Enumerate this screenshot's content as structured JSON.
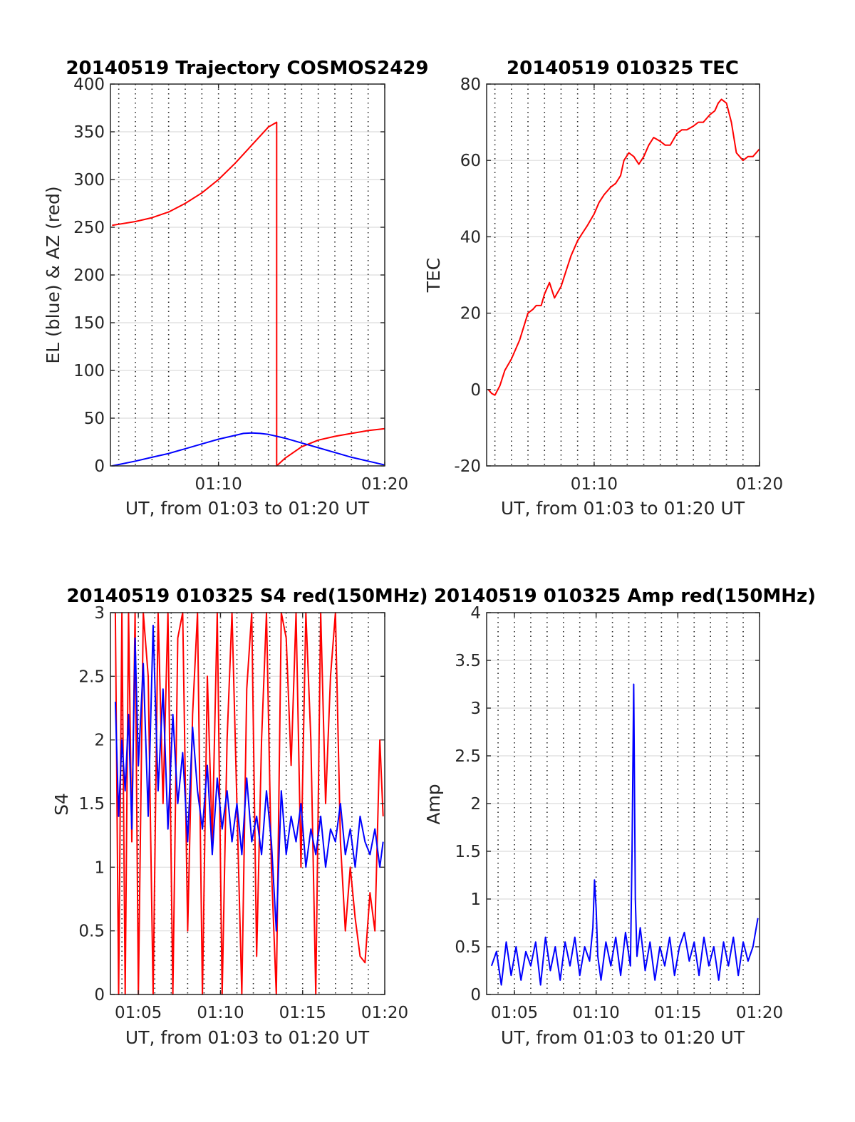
{
  "chart_data": [
    {
      "type": "line",
      "title": "20140519 Trajectory COSMOS2429",
      "xlabel": "UT, from 01:03 to 01:20 UT",
      "ylabel": "EL (blue) & AZ (red)",
      "xlim": [
        3.5,
        20
      ],
      "ylim": [
        0,
        400
      ],
      "xticks": [
        10,
        20
      ],
      "xtick_labels": [
        "01:10",
        "01:20"
      ],
      "yticks": [
        0,
        50,
        100,
        150,
        200,
        250,
        300,
        350,
        400
      ],
      "ytick_labels": [
        "0",
        "50",
        "100",
        "150",
        "200",
        "250",
        "300",
        "350",
        "400"
      ],
      "grid": true,
      "series": [
        {
          "color": "#ff0000",
          "x": [
            3.6,
            5,
            6,
            7,
            8,
            9,
            10,
            11,
            12,
            13,
            13.5,
            13.5,
            14,
            15,
            16,
            17,
            18,
            19,
            20
          ],
          "y": [
            252,
            256,
            260,
            266,
            275,
            286,
            300,
            317,
            336,
            355,
            360,
            0,
            8,
            20,
            27,
            31,
            34,
            37,
            39
          ]
        },
        {
          "color": "#0000ff",
          "x": [
            3.6,
            5,
            6,
            7,
            8,
            9,
            10,
            11,
            11.5,
            12,
            12.5,
            13,
            14,
            15,
            16,
            17,
            18,
            19,
            20
          ],
          "y": [
            0,
            5,
            9,
            13,
            18,
            23,
            28,
            32,
            34,
            34.5,
            34,
            33,
            29,
            24,
            19,
            14,
            9,
            5,
            1
          ]
        }
      ]
    },
    {
      "type": "line",
      "title": "20140519 010325 TEC",
      "xlabel": "UT, from 01:03 to 01:20 UT",
      "ylabel": "TEC",
      "xlim": [
        3.5,
        20
      ],
      "ylim": [
        -20,
        80
      ],
      "xticks": [
        10,
        20
      ],
      "xtick_labels": [
        "01:10",
        "01:20"
      ],
      "yticks": [
        -20,
        0,
        20,
        40,
        60,
        80
      ],
      "ytick_labels": [
        "-20",
        "0",
        "20",
        "40",
        "60",
        "80"
      ],
      "grid": true,
      "series": [
        {
          "color": "#ff0000",
          "x": [
            3.6,
            3.8,
            4.0,
            4.3,
            4.6,
            5.0,
            5.5,
            6.0,
            6.3,
            6.5,
            6.8,
            7.0,
            7.3,
            7.6,
            8.0,
            8.3,
            8.6,
            9.0,
            9.3,
            9.6,
            10.0,
            10.3,
            10.6,
            11.0,
            11.3,
            11.6,
            11.8,
            12.1,
            12.4,
            12.7,
            13.0,
            13.3,
            13.6,
            14.0,
            14.3,
            14.6,
            15.0,
            15.3,
            15.6,
            16.0,
            16.3,
            16.6,
            17.0,
            17.3,
            17.5,
            17.7,
            18.0,
            18.3,
            18.6,
            19.0,
            19.3,
            19.6,
            20.0
          ],
          "y": [
            0,
            -1,
            -1.5,
            1,
            5,
            8,
            13,
            20,
            21,
            22,
            22,
            25,
            28,
            24,
            27,
            31,
            35,
            39,
            41,
            43,
            46,
            49,
            51,
            53,
            54,
            56,
            60,
            62,
            61,
            59,
            61,
            64,
            66,
            65,
            64,
            64,
            67,
            68,
            68,
            69,
            70,
            70,
            72,
            73,
            75,
            76,
            75,
            70,
            62,
            60,
            61,
            61,
            63
          ]
        }
      ]
    },
    {
      "type": "line",
      "title": "20140519 010325 S4 red(150MHz)",
      "xlabel": "UT, from 01:03 to 01:20 UT",
      "ylabel": "S4",
      "xlim": [
        3.3,
        20
      ],
      "ylim": [
        0,
        3
      ],
      "xticks": [
        5,
        10,
        15,
        20
      ],
      "xtick_labels": [
        "01:05",
        "01:10",
        "01:15",
        "01:20"
      ],
      "yticks": [
        0,
        0.5,
        1,
        1.5,
        2,
        2.5,
        3
      ],
      "ytick_labels": [
        "0",
        "0.5",
        "1",
        "1.5",
        "2",
        "2.5",
        "3"
      ],
      "grid": true,
      "series": [
        {
          "color": "#ff0000",
          "x": [
            3.6,
            3.8,
            4.0,
            4.2,
            4.4,
            4.6,
            4.8,
            5.0,
            5.3,
            5.6,
            5.9,
            6.2,
            6.5,
            6.8,
            7.1,
            7.4,
            7.7,
            8.0,
            8.3,
            8.6,
            8.9,
            9.2,
            9.5,
            9.8,
            10.1,
            10.4,
            10.7,
            11.0,
            11.3,
            11.6,
            11.9,
            12.2,
            12.5,
            12.8,
            13.1,
            13.4,
            13.7,
            14.0,
            14.3,
            14.6,
            14.9,
            15.2,
            15.5,
            15.8,
            16.1,
            16.4,
            16.7,
            17.0,
            17.3,
            17.6,
            17.9,
            18.2,
            18.5,
            18.8,
            19.1,
            19.4,
            19.7,
            19.9
          ],
          "y": [
            3,
            0,
            3,
            0,
            3,
            1.2,
            3,
            0,
            3,
            2.5,
            0,
            3,
            1.5,
            3,
            0,
            2.8,
            3,
            0.5,
            2.2,
            3,
            0,
            2.5,
            1.2,
            3,
            0,
            2.0,
            3,
            1.5,
            0,
            2.4,
            3,
            0.3,
            2.0,
            3,
            1.0,
            0,
            3,
            2.8,
            1.8,
            3,
            1.0,
            3,
            2.0,
            0,
            3,
            1.5,
            2.5,
            3,
            1.2,
            0.5,
            1.0,
            0.6,
            0.3,
            0.25,
            0.8,
            0.5,
            2.0,
            1.4
          ]
        },
        {
          "color": "#0000ff",
          "x": [
            3.6,
            3.8,
            4.0,
            4.2,
            4.4,
            4.6,
            4.8,
            5.0,
            5.3,
            5.6,
            5.9,
            6.2,
            6.5,
            6.8,
            7.1,
            7.4,
            7.7,
            8.0,
            8.3,
            8.6,
            8.9,
            9.2,
            9.5,
            9.8,
            10.1,
            10.4,
            10.7,
            11.0,
            11.3,
            11.6,
            11.9,
            12.2,
            12.5,
            12.8,
            13.1,
            13.4,
            13.7,
            14.0,
            14.3,
            14.6,
            14.9,
            15.2,
            15.5,
            15.8,
            16.1,
            16.4,
            16.7,
            17.0,
            17.3,
            17.6,
            17.9,
            18.2,
            18.5,
            18.8,
            19.1,
            19.4,
            19.7,
            19.9
          ],
          "y": [
            2.3,
            1.4,
            2.0,
            1.6,
            2.2,
            1.3,
            2.8,
            1.8,
            2.6,
            1.4,
            2.9,
            1.6,
            2.4,
            1.3,
            2.2,
            1.5,
            1.9,
            1.2,
            2.1,
            1.6,
            1.3,
            1.8,
            1.1,
            1.7,
            1.3,
            1.6,
            1.2,
            1.5,
            1.1,
            1.7,
            1.2,
            1.4,
            1.1,
            1.6,
            1.2,
            0.5,
            1.6,
            1.1,
            1.4,
            1.2,
            1.5,
            1.0,
            1.3,
            1.1,
            1.4,
            1.0,
            1.3,
            1.2,
            1.5,
            1.1,
            1.3,
            1.0,
            1.4,
            1.2,
            1.1,
            1.3,
            1.0,
            1.2
          ]
        }
      ]
    },
    {
      "type": "line",
      "title": "20140519 010325 Amp red(150MHz)",
      "xlabel": "UT, from 01:03 to 01:20 UT",
      "ylabel": "Amp",
      "xlim": [
        3.3,
        20
      ],
      "ylim": [
        0,
        4
      ],
      "xticks": [
        5,
        10,
        15,
        20
      ],
      "xtick_labels": [
        "01:05",
        "01:10",
        "01:15",
        "01:20"
      ],
      "yticks": [
        0,
        0.5,
        1,
        1.5,
        2,
        2.5,
        3,
        3.5,
        4
      ],
      "ytick_labels": [
        "0",
        "0.5",
        "1",
        "1.5",
        "2",
        "2.5",
        "3",
        "3.5",
        "4"
      ],
      "grid": true,
      "series": [
        {
          "color": "#0000ff",
          "x": [
            3.6,
            3.9,
            4.2,
            4.5,
            4.8,
            5.1,
            5.4,
            5.7,
            6.0,
            6.3,
            6.6,
            6.9,
            7.2,
            7.5,
            7.8,
            8.1,
            8.4,
            8.7,
            9.0,
            9.3,
            9.6,
            9.8,
            9.9,
            10.0,
            10.1,
            10.3,
            10.6,
            10.9,
            11.2,
            11.5,
            11.8,
            12.1,
            12.2,
            12.3,
            12.4,
            12.5,
            12.7,
            13.0,
            13.3,
            13.6,
            13.9,
            14.2,
            14.5,
            14.8,
            15.1,
            15.4,
            15.7,
            16.0,
            16.3,
            16.6,
            16.9,
            17.2,
            17.5,
            17.8,
            18.1,
            18.4,
            18.7,
            19.0,
            19.3,
            19.6,
            19.9
          ],
          "y": [
            0.3,
            0.45,
            0.1,
            0.55,
            0.2,
            0.5,
            0.15,
            0.45,
            0.3,
            0.55,
            0.1,
            0.6,
            0.25,
            0.5,
            0.15,
            0.55,
            0.3,
            0.6,
            0.2,
            0.5,
            0.35,
            0.7,
            1.2,
            0.9,
            0.4,
            0.15,
            0.55,
            0.3,
            0.6,
            0.2,
            0.65,
            0.3,
            1.5,
            3.25,
            1.0,
            0.4,
            0.7,
            0.25,
            0.55,
            0.15,
            0.5,
            0.3,
            0.6,
            0.2,
            0.5,
            0.65,
            0.35,
            0.55,
            0.2,
            0.6,
            0.3,
            0.5,
            0.15,
            0.55,
            0.3,
            0.6,
            0.2,
            0.55,
            0.35,
            0.5,
            0.8
          ]
        }
      ]
    }
  ]
}
